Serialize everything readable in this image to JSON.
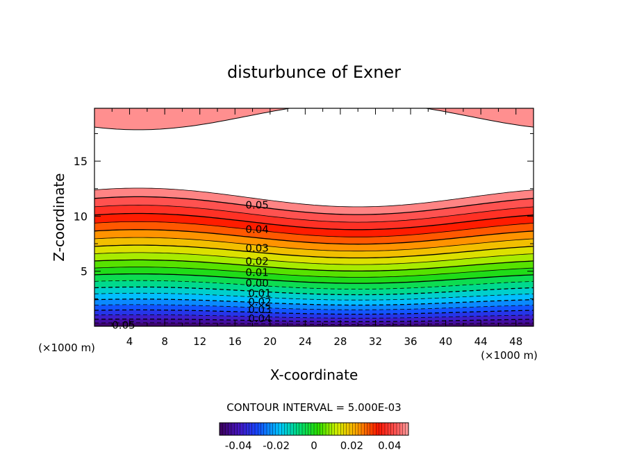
{
  "chart_data": {
    "type": "contour",
    "title": "disturbunce of Exner",
    "xlabel": "X-coordinate",
    "ylabel": "Z-coordinate",
    "x_unit": "(×1000 m)",
    "x_unit_right": "(×1000 m)",
    "xlim": [
      0,
      50
    ],
    "ylim": [
      0,
      19.8
    ],
    "xticks": [
      4,
      8,
      12,
      16,
      20,
      24,
      28,
      32,
      36,
      40,
      44,
      48
    ],
    "yticks": [
      5,
      10,
      15
    ],
    "contour_interval_label": "CONTOUR INTERVAL = 5.000E-03",
    "contour_interval": 0.005,
    "value_range": [
      -0.05,
      0.055
    ],
    "contour_labels": [
      {
        "text": "0.05",
        "x": 17.2,
        "z": 11.0
      },
      {
        "text": "0.04",
        "x": 17.2,
        "z": 8.8
      },
      {
        "text": "0.03",
        "x": 17.2,
        "z": 7.1
      },
      {
        "text": "0.02",
        "x": 17.2,
        "z": 5.9
      },
      {
        "text": "0.01",
        "x": 17.2,
        "z": 4.9
      },
      {
        "text": "0.00",
        "x": 17.2,
        "z": 3.9
      },
      {
        "text": "0.01",
        "x": 17.5,
        "z": 3.0
      },
      {
        "text": "0.02",
        "x": 17.5,
        "z": 2.2
      },
      {
        "text": "0.03",
        "x": 17.5,
        "z": 1.5
      },
      {
        "text": "0.04",
        "x": 17.5,
        "z": 0.7
      },
      {
        "text": "0.05",
        "x": 2.0,
        "z": 0.1
      }
    ],
    "colorbar": {
      "ticks": [
        "-0.04",
        "-0.02",
        "0",
        "0.02",
        "0.04"
      ],
      "tick_values": [
        -0.04,
        -0.02,
        0,
        0.02,
        0.04
      ],
      "range": [
        -0.05,
        0.05
      ]
    },
    "grid": false
  }
}
